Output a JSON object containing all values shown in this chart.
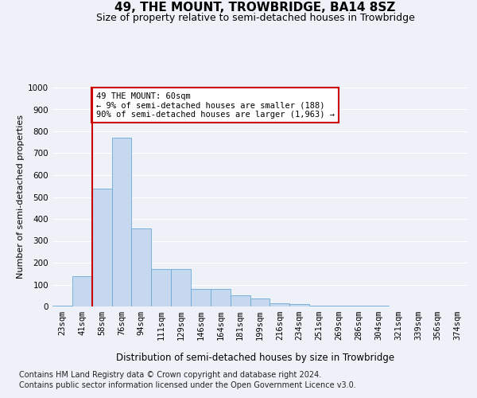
{
  "title": "49, THE MOUNT, TROWBRIDGE, BA14 8SZ",
  "subtitle": "Size of property relative to semi-detached houses in Trowbridge",
  "xlabel": "Distribution of semi-detached houses by size in Trowbridge",
  "ylabel": "Number of semi-detached properties",
  "bins": [
    "23sqm",
    "41sqm",
    "58sqm",
    "76sqm",
    "94sqm",
    "111sqm",
    "129sqm",
    "146sqm",
    "164sqm",
    "181sqm",
    "199sqm",
    "216sqm",
    "234sqm",
    "251sqm",
    "269sqm",
    "286sqm",
    "304sqm",
    "321sqm",
    "339sqm",
    "356sqm",
    "374sqm"
  ],
  "values": [
    5,
    140,
    540,
    770,
    355,
    170,
    170,
    80,
    80,
    50,
    35,
    15,
    10,
    5,
    5,
    3,
    2,
    1,
    1,
    0,
    0
  ],
  "bar_color": "#c5d8f0",
  "bar_edge_color": "#6aaad4",
  "vline_x_index": 2,
  "vline_color": "#cc0000",
  "annotation_text": "49 THE MOUNT: 60sqm\n← 9% of semi-detached houses are smaller (188)\n90% of semi-detached houses are larger (1,963) →",
  "annotation_box_facecolor": "#ffffff",
  "annotation_box_edgecolor": "#cc0000",
  "ylim": [
    0,
    1000
  ],
  "yticks": [
    0,
    100,
    200,
    300,
    400,
    500,
    600,
    700,
    800,
    900,
    1000
  ],
  "footer_line1": "Contains HM Land Registry data © Crown copyright and database right 2024.",
  "footer_line2": "Contains public sector information licensed under the Open Government Licence v3.0.",
  "bg_color": "#eef2f8",
  "grid_color": "#ffffff",
  "title_fontsize": 11,
  "subtitle_fontsize": 9,
  "ylabel_fontsize": 8,
  "xlabel_fontsize": 8.5,
  "tick_fontsize": 7.5,
  "footer_fontsize": 7,
  "ann_fontsize": 7.5
}
